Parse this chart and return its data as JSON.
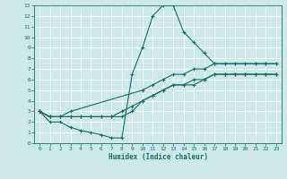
{
  "xlabel": "Humidex (Indice chaleur)",
  "bg_color": "#cde8e8",
  "grid_color": "#b8d8d8",
  "line_color": "#1a6b6b",
  "xlim": [
    -0.5,
    23.5
  ],
  "ylim": [
    0,
    13
  ],
  "xticks": [
    0,
    1,
    2,
    3,
    4,
    5,
    6,
    7,
    8,
    9,
    10,
    11,
    12,
    13,
    14,
    15,
    16,
    17,
    18,
    19,
    20,
    21,
    22,
    23
  ],
  "yticks": [
    0,
    1,
    2,
    3,
    4,
    5,
    6,
    7,
    8,
    9,
    10,
    11,
    12,
    13
  ],
  "series": [
    {
      "x": [
        0,
        1,
        2,
        3,
        4,
        5,
        6,
        7,
        8,
        9,
        10,
        11,
        12,
        13,
        14,
        15,
        16,
        17,
        18,
        19,
        20,
        21,
        22,
        23
      ],
      "y": [
        3,
        2,
        2,
        1.5,
        1.2,
        1.0,
        0.8,
        0.5,
        0.5,
        6.5,
        9,
        12,
        13,
        13,
        10.5,
        9.5,
        8.5,
        7.5,
        7.5,
        7.5,
        7.5,
        7.5,
        7.5,
        7.5
      ]
    },
    {
      "x": [
        0,
        1,
        2,
        3,
        10,
        11,
        12,
        13,
        14,
        15,
        16,
        17,
        18,
        19,
        20,
        21,
        22,
        23
      ],
      "y": [
        3,
        2.5,
        2.5,
        3,
        5,
        5.5,
        6,
        6.5,
        6.5,
        7,
        7,
        7.5,
        7.5,
        7.5,
        7.5,
        7.5,
        7.5,
        7.5
      ]
    },
    {
      "x": [
        0,
        1,
        2,
        3,
        4,
        5,
        6,
        7,
        8,
        9,
        10,
        11,
        12,
        13,
        14,
        15,
        16,
        17,
        18,
        19,
        20,
        21,
        22,
        23
      ],
      "y": [
        3,
        2.5,
        2.5,
        2.5,
        2.5,
        2.5,
        2.5,
        2.5,
        2.5,
        3,
        4,
        4.5,
        5,
        5.5,
        5.5,
        6,
        6,
        6.5,
        6.5,
        6.5,
        6.5,
        6.5,
        6.5,
        6.5
      ]
    },
    {
      "x": [
        0,
        1,
        2,
        3,
        4,
        5,
        6,
        7,
        8,
        9,
        10,
        11,
        12,
        13,
        14,
        15,
        16,
        17,
        18,
        19,
        20,
        21,
        22,
        23
      ],
      "y": [
        3,
        2.5,
        2.5,
        2.5,
        2.5,
        2.5,
        2.5,
        2.5,
        3,
        3.5,
        4,
        4.5,
        5,
        5.5,
        5.5,
        5.5,
        6,
        6.5,
        6.5,
        6.5,
        6.5,
        6.5,
        6.5,
        6.5
      ]
    }
  ],
  "figsize": [
    3.2,
    2.0
  ],
  "dpi": 100
}
